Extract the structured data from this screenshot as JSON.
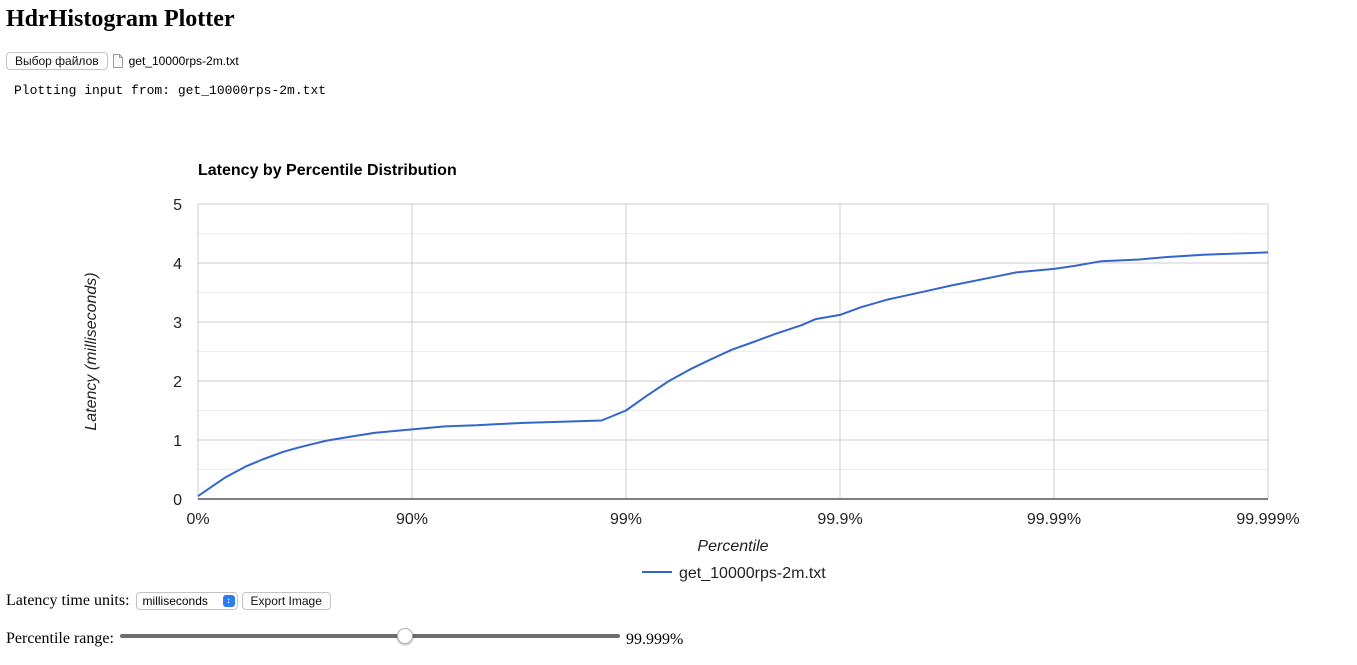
{
  "header": {
    "title": "HdrHistogram Plotter"
  },
  "file_input": {
    "button_label": "Выбор файлов",
    "file_name": "get_10000rps-2m.txt",
    "icon": "document-icon"
  },
  "status": {
    "plotting_text": "Plotting input from: get_10000rps-2m.txt"
  },
  "chart_data": {
    "type": "line",
    "title": "Latency by Percentile Distribution",
    "xlabel": "Percentile",
    "ylabel": "Latency (milliseconds)",
    "x_scale": "log",
    "x_tick_labels": [
      "0%",
      "90%",
      "99%",
      "99.9%",
      "99.99%",
      "99.999%"
    ],
    "y_ticks": [
      0,
      1,
      2,
      3,
      4,
      5
    ],
    "ylim": [
      0,
      5
    ],
    "grid": true,
    "legend_position": "bottom",
    "series": [
      {
        "name": "get_10000rps-2m.txt",
        "color": "#3366cc",
        "points": [
          [
            0,
            0.05
          ],
          [
            25,
            0.36
          ],
          [
            40,
            0.55
          ],
          [
            50,
            0.67
          ],
          [
            60,
            0.8
          ],
          [
            65,
            0.86
          ],
          [
            70,
            0.92
          ],
          [
            75,
            0.99
          ],
          [
            80,
            1.05
          ],
          [
            85,
            1.12
          ],
          [
            90,
            1.18
          ],
          [
            93,
            1.23
          ],
          [
            95,
            1.25
          ],
          [
            96,
            1.27
          ],
          [
            97,
            1.29
          ],
          [
            98,
            1.31
          ],
          [
            98.7,
            1.33
          ],
          [
            99,
            1.5
          ],
          [
            99.2,
            1.75
          ],
          [
            99.37,
            2.0
          ],
          [
            99.5,
            2.2
          ],
          [
            99.6,
            2.37
          ],
          [
            99.68,
            2.53
          ],
          [
            99.75,
            2.67
          ],
          [
            99.8,
            2.8
          ],
          [
            99.85,
            2.95
          ],
          [
            99.87,
            3.05
          ],
          [
            99.9,
            3.12
          ],
          [
            99.92,
            3.25
          ],
          [
            99.94,
            3.38
          ],
          [
            99.96,
            3.52
          ],
          [
            99.97,
            3.62
          ],
          [
            99.98,
            3.75
          ],
          [
            99.985,
            3.84
          ],
          [
            99.99,
            3.9
          ],
          [
            99.992,
            3.95
          ],
          [
            99.994,
            4.03
          ],
          [
            99.996,
            4.06
          ],
          [
            99.997,
            4.1
          ],
          [
            99.998,
            4.14
          ],
          [
            99.999,
            4.18
          ]
        ]
      }
    ]
  },
  "controls": {
    "units_label": "Latency time units:",
    "units_value": "milliseconds",
    "export_label": "Export Image",
    "range_label": "Percentile range:",
    "range_value_text": "99.999%",
    "range_fraction": 0.57
  }
}
